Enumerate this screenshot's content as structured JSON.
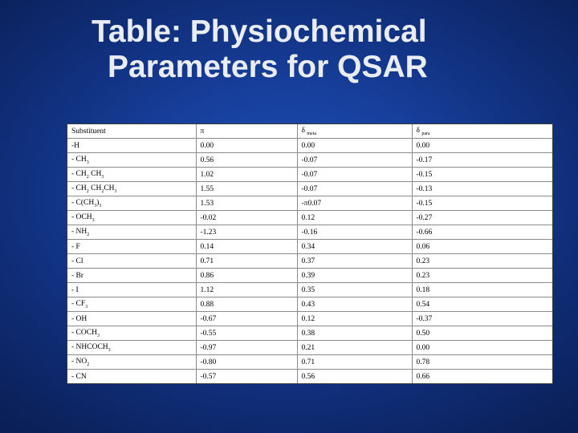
{
  "title": {
    "line1": "Table: Physiochemical",
    "line2": "Parameters for QSAR"
  },
  "table": {
    "headers": [
      {
        "main": "Substituent",
        "sub": ""
      },
      {
        "main": "π",
        "sub": ""
      },
      {
        "main": "δ",
        "sub": "meta"
      },
      {
        "main": "δ",
        "sub": "para"
      }
    ],
    "rows": [
      {
        "sub": [
          [
            "-H",
            ""
          ]
        ],
        "pi": "0.00",
        "meta": "0.00",
        "para": "0.00"
      },
      {
        "sub": [
          [
            "- CH",
            ""
          ],
          [
            "3",
            "s"
          ]
        ],
        "pi": "0.56",
        "meta": "-0.07",
        "para": "-0.17"
      },
      {
        "sub": [
          [
            "- CH",
            ""
          ],
          [
            "2",
            "s"
          ],
          [
            " CH",
            ""
          ],
          [
            "3",
            "s"
          ]
        ],
        "pi": "1.02",
        "meta": "-0.07",
        "para": "-0.15"
      },
      {
        "sub": [
          [
            "- CH",
            ""
          ],
          [
            "2",
            "s"
          ],
          [
            " CH",
            ""
          ],
          [
            "2",
            "s"
          ],
          [
            "CH",
            ""
          ],
          [
            "3",
            "s"
          ]
        ],
        "pi": "1.55",
        "meta": "-0.07",
        "para": "-0.13"
      },
      {
        "sub": [
          [
            "- C(CH",
            ""
          ],
          [
            "3",
            "s"
          ],
          [
            ")",
            ""
          ],
          [
            "3",
            "s"
          ]
        ],
        "pi": "1.53",
        "meta": "-π0.07",
        "para": "-0.15"
      },
      {
        "sub": [
          [
            "- OCH",
            ""
          ],
          [
            "3",
            "s"
          ]
        ],
        "pi": "-0.02",
        "meta": "0.12",
        "para": "-0.27"
      },
      {
        "sub": [
          [
            "- NH",
            ""
          ],
          [
            "2",
            "s"
          ]
        ],
        "pi": "-1.23",
        "meta": "-0.16",
        "para": "-0.66"
      },
      {
        "sub": [
          [
            "- F",
            ""
          ]
        ],
        "pi": "0.14",
        "meta": "0.34",
        "para": "0.06"
      },
      {
        "sub": [
          [
            "- Cl",
            ""
          ]
        ],
        "pi": "0.71",
        "meta": "0.37",
        "para": "0.23"
      },
      {
        "sub": [
          [
            "- Br",
            ""
          ]
        ],
        "pi": "0.86",
        "meta": "0.39",
        "para": "0.23"
      },
      {
        "sub": [
          [
            "- I",
            ""
          ]
        ],
        "pi": "1.12",
        "meta": "0.35",
        "para": "0.18"
      },
      {
        "sub": [
          [
            "- CF",
            ""
          ],
          [
            "3",
            "s"
          ]
        ],
        "pi": "0.88",
        "meta": "0.43",
        "para": "0.54"
      },
      {
        "sub": [
          [
            "- OH",
            ""
          ]
        ],
        "pi": "-0.67",
        "meta": "0.12",
        "para": "-0.37"
      },
      {
        "sub": [
          [
            "- COCH",
            ""
          ],
          [
            "3",
            "s"
          ]
        ],
        "pi": "-0.55",
        "meta": "0.38",
        "para": "0.50"
      },
      {
        "sub": [
          [
            "- NHCOCH",
            ""
          ],
          [
            "3",
            "s"
          ]
        ],
        "pi": "-0.97",
        "meta": "0.21",
        "para": "0.00"
      },
      {
        "sub": [
          [
            "- NO",
            ""
          ],
          [
            "2",
            "s"
          ]
        ],
        "pi": "-0.80",
        "meta": "0.71",
        "para": "0.78"
      },
      {
        "sub": [
          [
            "- CN",
            ""
          ]
        ],
        "pi": "-0.57",
        "meta": "0.56",
        "para": "0.66"
      }
    ]
  }
}
